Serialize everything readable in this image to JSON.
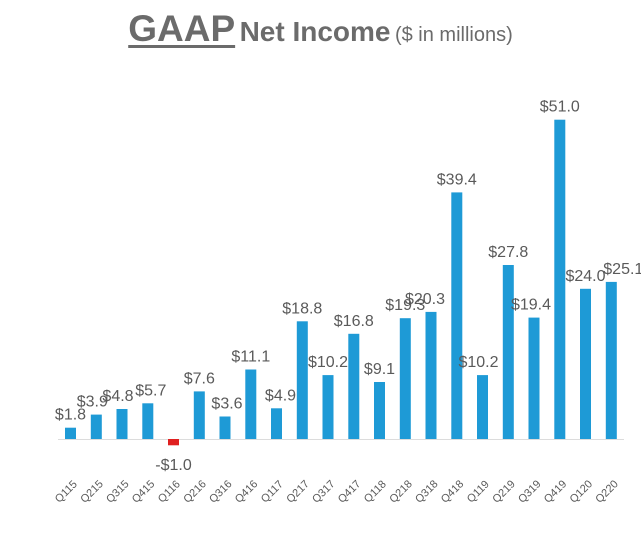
{
  "title": {
    "main": "GAAP",
    "rest": "Net Income",
    "unit": "($ in millions)"
  },
  "colors": {
    "positive_bar": "#1e9ad6",
    "negative_bar": "#e02020",
    "text": "#5a5a5a",
    "axis": "#dcdcdc"
  },
  "chart_data": {
    "type": "bar",
    "title": "GAAP Net Income ($ in millions)",
    "categories": [
      "Q115",
      "Q215",
      "Q315",
      "Q415",
      "Q116",
      "Q216",
      "Q316",
      "Q416",
      "Q117",
      "Q217",
      "Q317",
      "Q417",
      "Q118",
      "Q218",
      "Q318",
      "Q418",
      "Q119",
      "Q219",
      "Q319",
      "Q419",
      "Q120",
      "Q220"
    ],
    "values": [
      1.8,
      3.9,
      4.8,
      5.7,
      -1.0,
      7.6,
      3.6,
      11.1,
      4.9,
      18.8,
      10.2,
      16.8,
      9.1,
      19.3,
      20.3,
      39.4,
      10.2,
      27.8,
      19.4,
      51.0,
      24.0,
      25.1
    ],
    "labels": [
      "$1.8",
      "$3.9",
      "$4.8",
      "$5.7",
      "-$1.0",
      "$7.6",
      "$3.6",
      "$11.1",
      "$4.9",
      "$18.8",
      "$10.2",
      "$16.8",
      "$9.1",
      "$19.3",
      "$20.3",
      "$39.4",
      "$10.2",
      "$27.8",
      "$19.4",
      "$51.0",
      "$24.0",
      "$25.1"
    ],
    "xlabel": "",
    "ylabel": "",
    "ylim": [
      -1.5,
      51
    ],
    "grid": false,
    "legend": "none"
  }
}
